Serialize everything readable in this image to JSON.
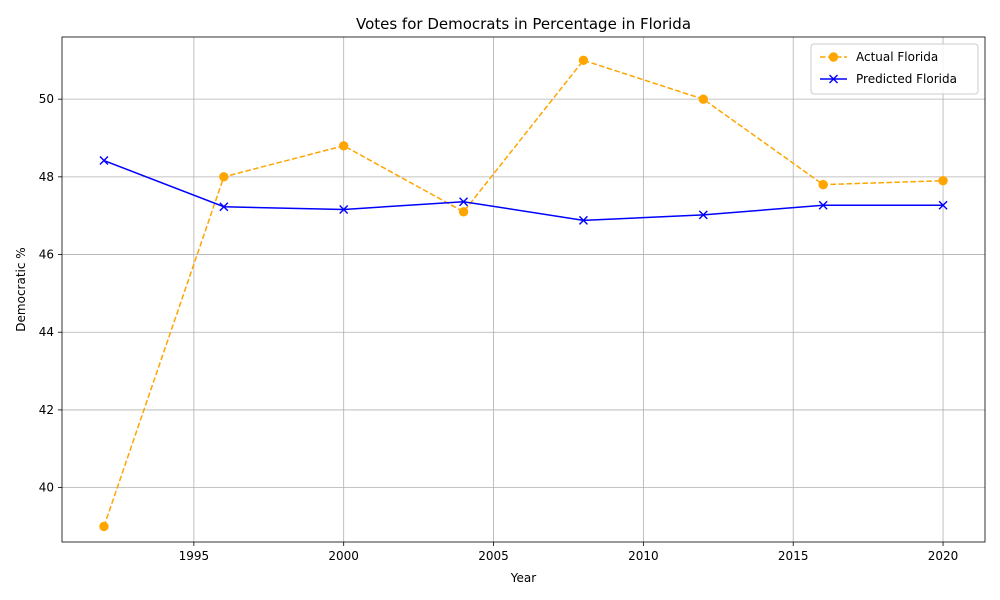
{
  "chart_data": {
    "type": "line",
    "title": "Votes for Democrats in Percentage in Florida",
    "xlabel": "Year",
    "ylabel": "Democratic %",
    "x": [
      1992,
      1996,
      2000,
      2004,
      2008,
      2012,
      2016,
      2020
    ],
    "xlim": [
      1990.6,
      2021.4
    ],
    "ylim": [
      38.6,
      51.6
    ],
    "xticks": [
      1995,
      2000,
      2005,
      2010,
      2015,
      2020
    ],
    "yticks": [
      40,
      42,
      44,
      46,
      48,
      50
    ],
    "grid": true,
    "legend_position": "top-right",
    "series": [
      {
        "name": "Actual Florida",
        "values": [
          39.0,
          48.0,
          48.8,
          47.1,
          51.0,
          50.0,
          47.8,
          47.9
        ],
        "color": "#ffa500",
        "line_style": "dashed",
        "marker": "circle"
      },
      {
        "name": "Predicted Florida",
        "values": [
          48.42,
          47.23,
          47.16,
          47.36,
          46.88,
          47.02,
          47.27,
          47.27
        ],
        "color": "#0000ff",
        "line_style": "solid",
        "marker": "x"
      }
    ]
  }
}
